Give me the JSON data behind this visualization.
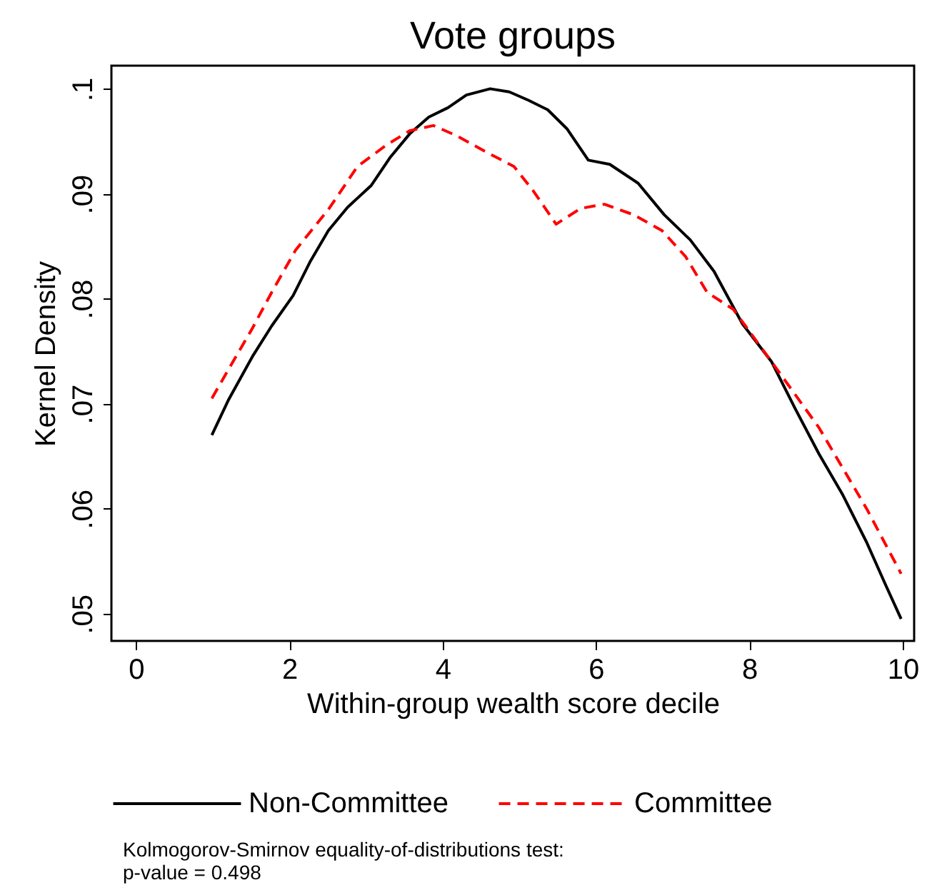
{
  "chart_data": {
    "type": "line",
    "title": "Vote groups",
    "xlabel": "Within-group wealth score decile",
    "ylabel": "Kernel Density",
    "xlim": [
      -0.32,
      10.15
    ],
    "xticks": [
      0,
      2,
      4,
      6,
      8,
      10
    ],
    "ylim": [
      0.0474,
      0.1022
    ],
    "yticks": [
      {
        "value": 0.05,
        "label": ".05"
      },
      {
        "value": 0.06,
        "label": ".06"
      },
      {
        "value": 0.07,
        "label": ".07"
      },
      {
        "value": 0.08,
        "label": ".08"
      },
      {
        "value": 0.09,
        "label": ".09"
      },
      {
        "value": 0.1,
        "label": ".1"
      }
    ],
    "grid": false,
    "legend": "bottom",
    "marker": "none",
    "annotations": [
      "Kolmogorov-Smirnov equality-of-distributions test:",
      "p-value = 0.498"
    ],
    "series": [
      {
        "name": "Non-Committee",
        "color": "#000000",
        "line_style": "solid",
        "x": [
          0.99,
          1.21,
          1.52,
          1.77,
          2.05,
          2.27,
          2.51,
          2.76,
          3.07,
          3.32,
          3.57,
          3.82,
          4.07,
          4.31,
          4.62,
          4.87,
          5.12,
          5.37,
          5.62,
          5.9,
          6.18,
          6.55,
          6.89,
          7.23,
          7.54,
          7.91,
          8.29,
          8.6,
          8.91,
          9.22,
          9.53,
          9.78,
          9.98
        ],
        "values": [
          0.067,
          0.0704,
          0.0745,
          0.0774,
          0.0803,
          0.0835,
          0.0865,
          0.0887,
          0.0908,
          0.0935,
          0.0957,
          0.0973,
          0.0982,
          0.0994,
          0.1,
          0.0997,
          0.0989,
          0.098,
          0.0962,
          0.0932,
          0.0928,
          0.091,
          0.088,
          0.0856,
          0.0826,
          0.0776,
          0.074,
          0.0695,
          0.0652,
          0.0613,
          0.0568,
          0.0527,
          0.0495
        ]
      },
      {
        "name": "Committee",
        "color": "#ff0000",
        "line_style": "dashed",
        "x": [
          0.99,
          1.21,
          1.52,
          1.77,
          2.08,
          2.51,
          2.89,
          3.26,
          3.57,
          3.88,
          4.19,
          4.56,
          4.93,
          5.18,
          5.48,
          5.8,
          6.11,
          6.49,
          6.86,
          7.17,
          7.45,
          7.79,
          8.29,
          8.91,
          9.53,
          9.98
        ],
        "values": [
          0.0705,
          0.0733,
          0.0772,
          0.0806,
          0.0846,
          0.0885,
          0.0926,
          0.0946,
          0.096,
          0.0965,
          0.0955,
          0.094,
          0.0926,
          0.0903,
          0.0871,
          0.0886,
          0.089,
          0.088,
          0.0865,
          0.084,
          0.0806,
          0.079,
          0.074,
          0.0677,
          0.06,
          0.0538
        ]
      }
    ]
  }
}
